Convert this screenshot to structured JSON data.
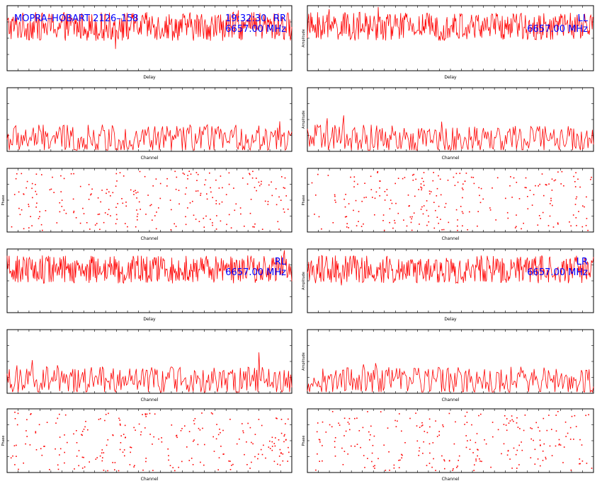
{
  "header": {
    "baseline_label": "MOPRA–HOBART 2126–158",
    "time_label": "19:32:30",
    "freq_label": "6657.00 MHz"
  },
  "colors": {
    "trace": "#ff0000",
    "label": "#0000ff",
    "frame": "#000000",
    "background": "#ffffff"
  },
  "chart_data": [
    {
      "id": "rr-delay",
      "type": "line",
      "xlabel": "Delay",
      "ylabel": "",
      "polarization": "RR",
      "freq": "6657.00 MHz",
      "xlim": [
        -256,
        256
      ],
      "ylim": [
        0,
        1
      ],
      "noise": {
        "base": 0.68,
        "amp": 0.22,
        "n": 420
      }
    },
    {
      "id": "ll-delay",
      "type": "line",
      "xlabel": "Delay",
      "ylabel": "Amplitude",
      "polarization": "LL",
      "freq": "6657.00 MHz",
      "xlim": [
        -256,
        256
      ],
      "ylim": [
        0,
        1
      ],
      "noise": {
        "base": 0.68,
        "amp": 0.22,
        "n": 420
      }
    },
    {
      "id": "rr-channel",
      "type": "line",
      "xlabel": "Channel",
      "ylabel": "",
      "xlim": [
        0,
        512
      ],
      "ylim": [
        0,
        1
      ],
      "noise": {
        "base": 0.2,
        "amp": 0.22,
        "n": 260
      }
    },
    {
      "id": "ll-channel",
      "type": "line",
      "xlabel": "Channel",
      "ylabel": "Amplitude",
      "xlim": [
        0,
        512
      ],
      "ylim": [
        0,
        1
      ],
      "noise": {
        "base": 0.2,
        "amp": 0.22,
        "n": 260
      }
    },
    {
      "id": "rr-phase",
      "type": "scatter",
      "xlabel": "Channel",
      "ylabel": "Phase",
      "xlim": [
        0,
        512
      ],
      "ylim": [
        -180,
        180
      ],
      "noise": {
        "n": 240
      }
    },
    {
      "id": "ll-phase",
      "type": "scatter",
      "xlabel": "Channel",
      "ylabel": "Phase",
      "xlim": [
        0,
        512
      ],
      "ylim": [
        -180,
        180
      ],
      "noise": {
        "n": 240
      }
    },
    {
      "id": "rl-delay",
      "type": "line",
      "xlabel": "Delay",
      "ylabel": "",
      "polarization": "RL",
      "freq": "6657.00 MHz",
      "xlim": [
        -256,
        256
      ],
      "ylim": [
        0,
        1
      ],
      "noise": {
        "base": 0.68,
        "amp": 0.22,
        "n": 420
      }
    },
    {
      "id": "lr-delay",
      "type": "line",
      "xlabel": "Delay",
      "ylabel": "Amplitude",
      "polarization": "LR",
      "freq": "6657.00 MHz",
      "xlim": [
        -256,
        256
      ],
      "ylim": [
        0,
        1
      ],
      "noise": {
        "base": 0.68,
        "amp": 0.22,
        "n": 420
      }
    },
    {
      "id": "rl-channel",
      "type": "line",
      "xlabel": "Channel",
      "ylabel": "",
      "xlim": [
        0,
        512
      ],
      "ylim": [
        0,
        1
      ],
      "noise": {
        "base": 0.2,
        "amp": 0.22,
        "n": 260
      }
    },
    {
      "id": "lr-channel",
      "type": "line",
      "xlabel": "Channel",
      "ylabel": "Amplitude",
      "xlim": [
        0,
        512
      ],
      "ylim": [
        0,
        1
      ],
      "noise": {
        "base": 0.2,
        "amp": 0.22,
        "n": 260
      }
    },
    {
      "id": "rl-phase",
      "type": "scatter",
      "xlabel": "Channel",
      "ylabel": "Phase",
      "xlim": [
        0,
        512
      ],
      "ylim": [
        -180,
        180
      ],
      "noise": {
        "n": 240
      }
    },
    {
      "id": "lr-phase",
      "type": "scatter",
      "xlabel": "Channel",
      "ylabel": "Phase",
      "xlim": [
        0,
        512
      ],
      "ylim": [
        -180,
        180
      ],
      "noise": {
        "n": 240
      }
    }
  ]
}
